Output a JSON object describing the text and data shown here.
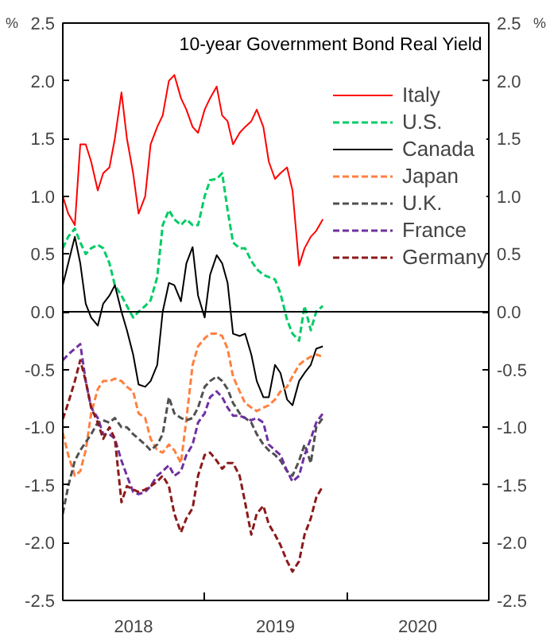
{
  "chart_data": {
    "type": "line",
    "title": "10-year Government Bond Real Yield",
    "ylabel": "%",
    "y2label": "%",
    "x": [
      "2018-01-01",
      "2018-01-15",
      "2018-02-01",
      "2018-02-15",
      "2018-03-01",
      "2018-03-15",
      "2018-04-01",
      "2018-04-15",
      "2018-05-01",
      "2018-05-15",
      "2018-06-01",
      "2018-06-15",
      "2018-07-01",
      "2018-07-15",
      "2018-08-01",
      "2018-08-15",
      "2018-09-01",
      "2018-09-15",
      "2018-10-01",
      "2018-10-15",
      "2018-11-01",
      "2018-11-15",
      "2018-12-01",
      "2018-12-15",
      "2019-01-01",
      "2019-01-15",
      "2019-02-01",
      "2019-02-15",
      "2019-03-01",
      "2019-03-15",
      "2019-04-01",
      "2019-04-15",
      "2019-05-01",
      "2019-05-15",
      "2019-06-01",
      "2019-06-15",
      "2019-07-01",
      "2019-07-15",
      "2019-08-01",
      "2019-08-15",
      "2019-09-01",
      "2019-09-15",
      "2019-10-01",
      "2019-10-15",
      "2019-11-01"
    ],
    "series": [
      {
        "name": "Italy",
        "color": "#ff0000",
        "line_style": "solid",
        "values": [
          1.0,
          0.85,
          0.75,
          1.45,
          1.45,
          1.3,
          1.05,
          1.2,
          1.25,
          1.5,
          1.9,
          1.5,
          1.2,
          0.85,
          1.0,
          1.45,
          1.6,
          1.7,
          2.0,
          2.05,
          1.85,
          1.75,
          1.6,
          1.55,
          1.75,
          1.85,
          1.95,
          1.7,
          1.65,
          1.45,
          1.55,
          1.6,
          1.65,
          1.75,
          1.6,
          1.3,
          1.15,
          1.2,
          1.25,
          1.05,
          0.4,
          0.55,
          0.65,
          0.7,
          0.8
        ]
      },
      {
        "name": "U.S.",
        "color": "#00cc66",
        "line_style": "dashed",
        "values": [
          0.55,
          0.65,
          0.72,
          0.6,
          0.5,
          0.55,
          0.58,
          0.55,
          0.42,
          0.23,
          0.14,
          0.05,
          -0.05,
          0.0,
          0.05,
          0.1,
          0.3,
          0.75,
          0.88,
          0.8,
          0.75,
          0.8,
          0.75,
          0.75,
          1.0,
          1.14,
          1.15,
          1.2,
          0.88,
          0.6,
          0.55,
          0.55,
          0.44,
          0.37,
          0.32,
          0.3,
          0.28,
          0.16,
          -0.07,
          -0.19,
          -0.25,
          0.05,
          -0.16,
          0.0,
          0.05
        ]
      },
      {
        "name": "Canada",
        "color": "#000000",
        "line_style": "solid",
        "values": [
          0.23,
          0.42,
          0.65,
          0.42,
          0.07,
          -0.05,
          -0.12,
          0.07,
          0.14,
          0.23,
          0.0,
          -0.16,
          -0.37,
          -0.63,
          -0.65,
          -0.6,
          -0.46,
          0.0,
          0.25,
          0.23,
          0.09,
          0.42,
          0.56,
          0.14,
          -0.05,
          0.32,
          0.49,
          0.42,
          0.25,
          -0.19,
          -0.21,
          -0.19,
          -0.37,
          -0.6,
          -0.74,
          -0.74,
          -0.46,
          -0.53,
          -0.76,
          -0.81,
          -0.6,
          -0.53,
          -0.46,
          -0.32,
          -0.3
        ]
      },
      {
        "name": "Japan",
        "color": "#ff8040",
        "line_style": "dashed",
        "values": [
          -1.05,
          -1.24,
          -1.42,
          -1.38,
          -1.2,
          -0.88,
          -0.67,
          -0.6,
          -0.6,
          -0.58,
          -0.6,
          -0.65,
          -0.69,
          -0.88,
          -0.92,
          -1.1,
          -1.2,
          -1.22,
          -1.15,
          -1.2,
          -1.31,
          -0.93,
          -0.46,
          -0.3,
          -0.23,
          -0.19,
          -0.19,
          -0.21,
          -0.32,
          -0.56,
          -0.69,
          -0.79,
          -0.83,
          -0.86,
          -0.83,
          -0.81,
          -0.76,
          -0.69,
          -0.65,
          -0.56,
          -0.46,
          -0.42,
          -0.39,
          -0.37,
          -0.39
        ]
      },
      {
        "name": "U.K.",
        "color": "#505050",
        "line_style": "dashed",
        "values": [
          -1.75,
          -1.51,
          -1.29,
          -1.2,
          -1.13,
          -1.06,
          -0.96,
          -0.94,
          -0.96,
          -0.92,
          -1.0,
          -1.0,
          -1.06,
          -1.1,
          -1.15,
          -1.2,
          -1.15,
          -1.06,
          -0.74,
          -0.88,
          -0.92,
          -0.94,
          -0.92,
          -0.83,
          -0.65,
          -0.6,
          -0.56,
          -0.6,
          -0.67,
          -0.79,
          -0.88,
          -0.92,
          -0.96,
          -1.06,
          -1.15,
          -1.2,
          -1.24,
          -1.29,
          -1.38,
          -1.42,
          -1.29,
          -1.15,
          -1.31,
          -1.0,
          -0.92
        ]
      },
      {
        "name": "France",
        "color": "#7030a0",
        "line_style": "dashed",
        "values": [
          -0.42,
          -0.37,
          -0.32,
          -0.28,
          -0.6,
          -0.83,
          -0.92,
          -1.06,
          -1.06,
          -1.1,
          -1.29,
          -1.42,
          -1.56,
          -1.58,
          -1.56,
          -1.51,
          -1.42,
          -1.38,
          -1.33,
          -1.42,
          -1.38,
          -1.24,
          -1.15,
          -0.96,
          -0.88,
          -0.74,
          -0.69,
          -0.74,
          -0.83,
          -0.9,
          -0.9,
          -0.92,
          -0.94,
          -0.92,
          -0.96,
          -1.15,
          -1.2,
          -1.24,
          -1.38,
          -1.47,
          -1.42,
          -1.24,
          -1.1,
          -0.96,
          -0.88
        ]
      },
      {
        "name": "Germany",
        "color": "#8b1a1a",
        "line_style": "dashed",
        "values": [
          -0.93,
          -0.79,
          -0.6,
          -0.42,
          -0.6,
          -0.83,
          -0.96,
          -1.1,
          -1.0,
          -1.1,
          -1.65,
          -1.51,
          -1.54,
          -1.56,
          -1.54,
          -1.51,
          -1.47,
          -1.42,
          -1.51,
          -1.75,
          -1.91,
          -1.79,
          -1.7,
          -1.42,
          -1.24,
          -1.22,
          -1.29,
          -1.36,
          -1.31,
          -1.31,
          -1.42,
          -1.65,
          -1.93,
          -1.75,
          -1.68,
          -1.84,
          -1.93,
          -2.02,
          -2.16,
          -2.25,
          -2.16,
          -1.93,
          -1.79,
          -1.61,
          -1.51
        ]
      }
    ],
    "xlim": [
      "2018-01-01",
      "2021-01-01"
    ],
    "xticks": [
      {
        "value": "2018-01-01",
        "label": null
      },
      {
        "value": "2018-07-02",
        "label": "2018"
      },
      {
        "value": "2019-01-01",
        "label": null
      },
      {
        "value": "2019-07-02",
        "label": "2019"
      },
      {
        "value": "2020-01-01",
        "label": null
      },
      {
        "value": "2020-07-02",
        "label": "2020"
      },
      {
        "value": "2021-01-01",
        "label": null
      }
    ],
    "ylim": [
      -2.5,
      2.5
    ],
    "yticks": [
      {
        "value": -2.5,
        "label": "-2.5"
      },
      {
        "value": -2.0,
        "label": "-2.0"
      },
      {
        "value": -1.5,
        "label": "-1.5"
      },
      {
        "value": -1.0,
        "label": "-1.0"
      },
      {
        "value": -0.5,
        "label": "-0.5"
      },
      {
        "value": 0,
        "label": "0.0"
      },
      {
        "value": 0.5,
        "label": "0.5"
      },
      {
        "value": 1.0,
        "label": "1.0"
      },
      {
        "value": 1.5,
        "label": "1.5"
      },
      {
        "value": 2.0,
        "label": "2.0"
      },
      {
        "value": 2.5,
        "label": "2.5"
      }
    ],
    "y2lim": [
      -2.5,
      2.5
    ],
    "y2ticks": [
      {
        "value": -2.5,
        "label": "-2.5"
      },
      {
        "value": -2.0,
        "label": "-2.0"
      },
      {
        "value": -1.5,
        "label": "-1.5"
      },
      {
        "value": -1.0,
        "label": "-1.0"
      },
      {
        "value": -0.5,
        "label": "-0.5"
      },
      {
        "value": 0,
        "label": "0.0"
      },
      {
        "value": 0.5,
        "label": "0.5"
      },
      {
        "value": 1.0,
        "label": "1.0"
      },
      {
        "value": 1.5,
        "label": "1.5"
      },
      {
        "value": 2.0,
        "label": "2.0"
      },
      {
        "value": 2.5,
        "label": "2.5"
      }
    ],
    "ref_lines": [
      {
        "axis": "y",
        "value": 0,
        "color": "#000000",
        "line_style": "solid"
      }
    ],
    "grid": false,
    "legend": "top right",
    "marker": "none"
  }
}
